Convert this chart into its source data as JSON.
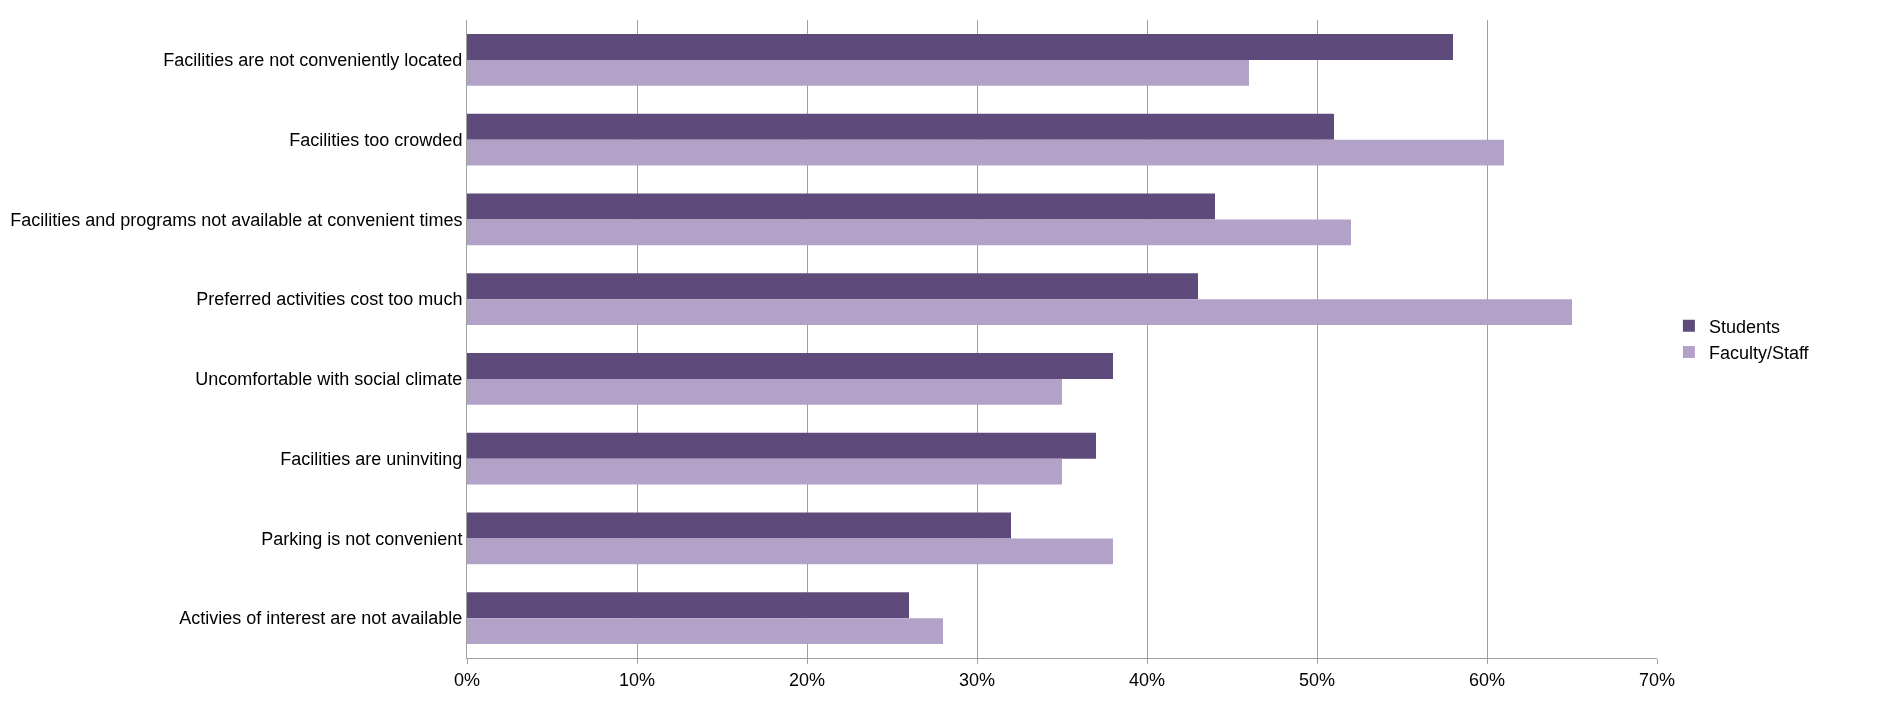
{
  "chart_data": {
    "type": "bar",
    "orientation": "horizontal",
    "categories": [
      "Facilities are not conveniently located",
      "Facilities too crowded",
      "Facilities and programs not available at convenient times",
      "Preferred activities cost too much",
      "Uncomfortable with social climate",
      "Facilities are uninviting",
      "Parking is not convenient",
      "Activies of interest are not available"
    ],
    "series": [
      {
        "name": "Students",
        "color": "#5f4b7b",
        "values": [
          58,
          51,
          44,
          43,
          38,
          37,
          32,
          26
        ]
      },
      {
        "name": "Faculty/Staff",
        "color": "#b3a2c7",
        "values": [
          46,
          61,
          52,
          65,
          35,
          35,
          38,
          28
        ]
      }
    ],
    "xlim": [
      0,
      70
    ],
    "xticks": [
      {
        "value": 0,
        "label": "0%"
      },
      {
        "value": 10,
        "label": "10%"
      },
      {
        "value": 20,
        "label": "20%"
      },
      {
        "value": 30,
        "label": "30%"
      },
      {
        "value": 40,
        "label": "40%"
      },
      {
        "value": 50,
        "label": "50%"
      },
      {
        "value": 60,
        "label": "60%"
      },
      {
        "value": 70,
        "label": "70%"
      }
    ],
    "grid": "x",
    "legend": "right"
  }
}
